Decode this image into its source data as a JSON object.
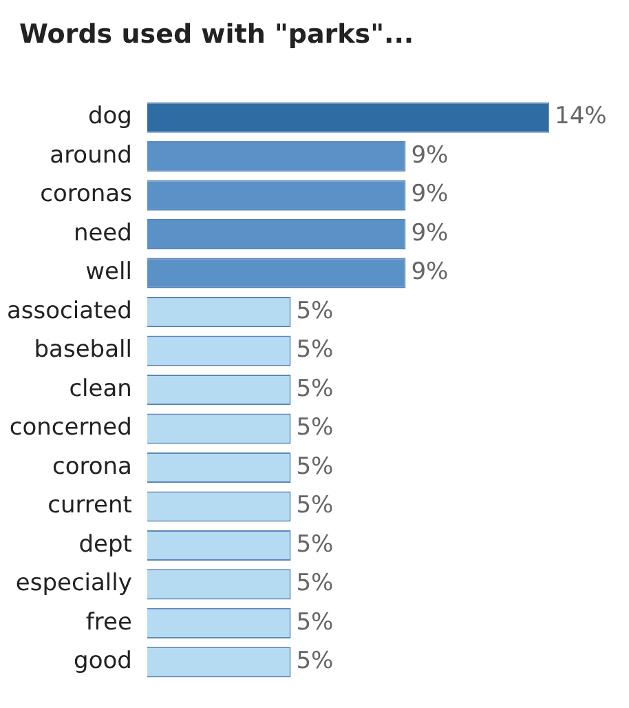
{
  "chart_data": {
    "type": "bar",
    "orientation": "horizontal",
    "title": "Words used with \"parks\"...",
    "categories": [
      "dog",
      "around",
      "coronas",
      "need",
      "well",
      "associated",
      "baseball",
      "clean",
      "concerned",
      "corona",
      "current",
      "dept",
      "especially",
      "free",
      "good"
    ],
    "values": [
      14,
      9,
      9,
      9,
      9,
      5,
      5,
      5,
      5,
      5,
      5,
      5,
      5,
      5,
      5
    ],
    "colors": [
      "#2f6ca3",
      "#5a91c7",
      "#5a91c7",
      "#5a91c7",
      "#5a91c7",
      "#b4dbf1",
      "#b4dbf1",
      "#b4dbf1",
      "#b4dbf1",
      "#b4dbf1",
      "#b4dbf1",
      "#b4dbf1",
      "#b4dbf1",
      "#b4dbf1",
      "#b4dbf1"
    ],
    "value_labels": [
      "14%",
      "9%",
      "9%",
      "9%",
      "9%",
      "5%",
      "5%",
      "5%",
      "5%",
      "5%",
      "5%",
      "5%",
      "5%",
      "5%",
      "5%"
    ],
    "tick_labels": "y"
  }
}
